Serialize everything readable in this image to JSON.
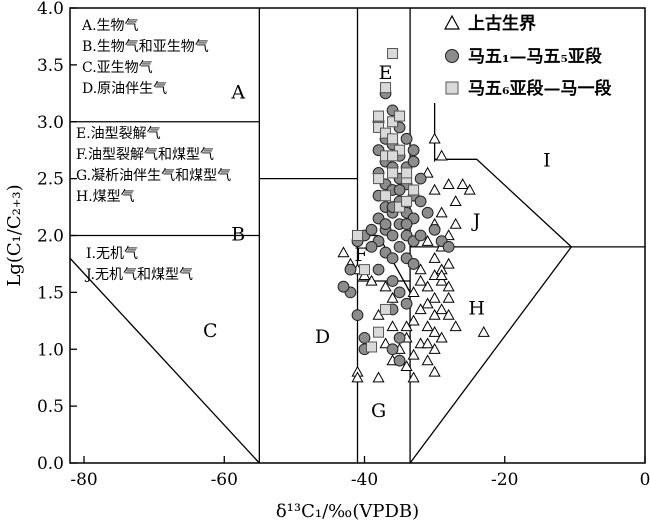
{
  "chart_data": {
    "type": "scatter",
    "xlabel": "δ¹³C₁/‰(VPDB)",
    "ylabel": "Lg(C₁/C₂₊₃)",
    "xlim": [
      -82,
      0
    ],
    "ylim": [
      0,
      4.0
    ],
    "x_ticks": [
      -80,
      -60,
      -40,
      -20,
      0
    ],
    "y_ticks": [
      0.0,
      0.5,
      1.0,
      1.5,
      2.0,
      2.5,
      3.0,
      3.5,
      4.0
    ],
    "x_tick_labels": [
      "-80",
      "-60",
      "-40",
      "-20",
      "0"
    ],
    "y_tick_labels": [
      "0.0",
      "0.5",
      "1.0",
      "1.5",
      "2.0",
      "2.5",
      "3.0",
      "3.5",
      "4.0"
    ],
    "region_letters": [
      {
        "label": "A",
        "x": -58,
        "y": 3.25
      },
      {
        "label": "B",
        "x": -58,
        "y": 2.0
      },
      {
        "label": "C",
        "x": -62,
        "y": 1.15
      },
      {
        "label": "D",
        "x": -46,
        "y": 1.1
      },
      {
        "label": "E",
        "x": -37,
        "y": 3.42
      },
      {
        "label": "F",
        "x": -40.5,
        "y": 1.82
      },
      {
        "label": "G",
        "x": -38,
        "y": 0.45
      },
      {
        "label": "H",
        "x": -24,
        "y": 1.35
      },
      {
        "label": "I",
        "x": -14,
        "y": 2.65
      },
      {
        "label": "J",
        "x": -24,
        "y": 2.12
      }
    ],
    "notes_group_1": [
      "A.生物气",
      "B.生物气和亚生物气",
      "C.亚生物气",
      "D.原油伴生气"
    ],
    "notes_group_2": [
      "E.油型裂解气",
      "F.油型裂解气和煤型气",
      "G.凝析油伴生气和煤型气",
      "H.煤型气"
    ],
    "notes_group_3": [
      "I.无机气",
      "J.无机气和煤型气"
    ],
    "series": [
      {
        "name": "上古生界",
        "marker": "triangle",
        "points": [
          [
            -30,
            2.85
          ],
          [
            -29,
            2.7
          ],
          [
            -31,
            2.55
          ],
          [
            -28,
            2.45
          ],
          [
            -30,
            2.4
          ],
          [
            -26,
            2.45
          ],
          [
            -25,
            2.4
          ],
          [
            -27,
            2.3
          ],
          [
            -29,
            2.2
          ],
          [
            -30,
            2.1
          ],
          [
            -27,
            2.1
          ],
          [
            -28,
            2.0
          ],
          [
            -31,
            1.95
          ],
          [
            -29,
            1.9
          ],
          [
            -30,
            1.8
          ],
          [
            -28,
            1.75
          ],
          [
            -32,
            1.7
          ],
          [
            -30,
            1.65
          ],
          [
            -29,
            1.6
          ],
          [
            -31,
            1.55
          ],
          [
            -28,
            1.55
          ],
          [
            -33,
            1.5
          ],
          [
            -30,
            1.45
          ],
          [
            -31,
            1.4
          ],
          [
            -29,
            1.35
          ],
          [
            -32,
            1.35
          ],
          [
            -28,
            1.3
          ],
          [
            -33,
            1.25
          ],
          [
            -31,
            1.2
          ],
          [
            -30,
            1.15
          ],
          [
            -34,
            1.1
          ],
          [
            -32,
            1.05
          ],
          [
            -30,
            1.0
          ],
          [
            -33,
            0.95
          ],
          [
            -35,
            0.9
          ],
          [
            -31,
            0.9
          ],
          [
            -34,
            0.85
          ],
          [
            -30,
            0.8
          ],
          [
            -36,
            0.9
          ],
          [
            -35,
            1.0
          ],
          [
            -37,
            1.05
          ],
          [
            -36,
            1.2
          ],
          [
            -38,
            1.3
          ],
          [
            -36,
            1.45
          ],
          [
            -37,
            1.55
          ],
          [
            -39,
            1.6
          ],
          [
            -40,
            1.65
          ],
          [
            -41,
            1.7
          ],
          [
            -42,
            1.75
          ],
          [
            -43,
            1.85
          ],
          [
            -41,
            2.0
          ],
          [
            -29,
            1.7
          ],
          [
            -28,
            1.45
          ],
          [
            -32,
            1.6
          ],
          [
            -27,
            1.2
          ],
          [
            -30,
            1.3
          ],
          [
            -29,
            1.1
          ],
          [
            -33,
            0.75
          ],
          [
            -38,
            0.75
          ],
          [
            -41,
            0.8
          ],
          [
            -41,
            0.75
          ],
          [
            -23,
            1.15
          ],
          [
            -34,
            1.2
          ],
          [
            -29,
            1.65
          ],
          [
            -31,
            1.05
          ]
        ]
      },
      {
        "name": "马五₁—马五₅亚段",
        "marker": "circle",
        "points": [
          [
            -37,
            3.25
          ],
          [
            -36,
            3.1
          ],
          [
            -38,
            3.0
          ],
          [
            -35,
            2.95
          ],
          [
            -37,
            2.85
          ],
          [
            -36,
            2.8
          ],
          [
            -34,
            2.85
          ],
          [
            -38,
            2.75
          ],
          [
            -35,
            2.7
          ],
          [
            -37,
            2.65
          ],
          [
            -36,
            2.6
          ],
          [
            -34,
            2.6
          ],
          [
            -33,
            2.65
          ],
          [
            -38,
            2.55
          ],
          [
            -35,
            2.5
          ],
          [
            -37,
            2.45
          ],
          [
            -36,
            2.4
          ],
          [
            -34,
            2.45
          ],
          [
            -33,
            2.35
          ],
          [
            -38,
            2.35
          ],
          [
            -35,
            2.3
          ],
          [
            -37,
            2.25
          ],
          [
            -36,
            2.2
          ],
          [
            -34,
            2.2
          ],
          [
            -33,
            2.15
          ],
          [
            -38,
            2.15
          ],
          [
            -35,
            2.1
          ],
          [
            -37,
            2.05
          ],
          [
            -36,
            2.0
          ],
          [
            -34,
            2.0
          ],
          [
            -33,
            1.95
          ],
          [
            -38,
            1.95
          ],
          [
            -35,
            1.9
          ],
          [
            -37,
            1.85
          ],
          [
            -36,
            1.8
          ],
          [
            -34,
            1.8
          ],
          [
            -33,
            1.75
          ],
          [
            -39,
            1.9
          ],
          [
            -40,
            2.0
          ],
          [
            -38,
            1.7
          ],
          [
            -36,
            1.6
          ],
          [
            -35,
            1.5
          ],
          [
            -34,
            1.4
          ],
          [
            -36,
            1.35
          ],
          [
            -35,
            1.1
          ],
          [
            -36,
            1.0
          ],
          [
            -35,
            0.9
          ],
          [
            -40,
            1.1
          ],
          [
            -40,
            1.0
          ],
          [
            -41,
            1.3
          ],
          [
            -42,
            1.5
          ],
          [
            -43,
            1.55
          ],
          [
            -42,
            1.7
          ],
          [
            -41,
            1.95
          ],
          [
            -39,
            2.05
          ],
          [
            -32,
            2.3
          ],
          [
            -31,
            2.2
          ],
          [
            -32,
            2.0
          ],
          [
            -30,
            2.05
          ],
          [
            -29,
            1.95
          ],
          [
            -28,
            1.9
          ],
          [
            -32,
            2.5
          ],
          [
            -33,
            2.75
          ],
          [
            -35,
            2.4
          ],
          [
            -36,
            2.25
          ],
          [
            -37,
            2.1
          ],
          [
            -34,
            2.1
          ]
        ]
      },
      {
        "name": "马五₆亚段—马一段",
        "marker": "square",
        "points": [
          [
            -36,
            3.6
          ],
          [
            -37,
            3.3
          ],
          [
            -38,
            3.05
          ],
          [
            -36,
            3.0
          ],
          [
            -35,
            3.05
          ],
          [
            -38,
            2.95
          ],
          [
            -37,
            2.9
          ],
          [
            -36,
            2.85
          ],
          [
            -37,
            2.7
          ],
          [
            -35,
            2.75
          ],
          [
            -36,
            2.55
          ],
          [
            -34,
            2.5
          ],
          [
            -38,
            2.5
          ],
          [
            -33,
            2.4
          ],
          [
            -37,
            2.35
          ],
          [
            -35,
            2.25
          ],
          [
            -34,
            2.3
          ],
          [
            -41,
            2.0
          ],
          [
            -40,
            1.7
          ],
          [
            -37,
            1.35
          ],
          [
            -38,
            1.15
          ],
          [
            -39,
            1.02
          ],
          [
            -34,
            2.55
          ],
          [
            -36,
            2.7
          ]
        ]
      }
    ]
  }
}
